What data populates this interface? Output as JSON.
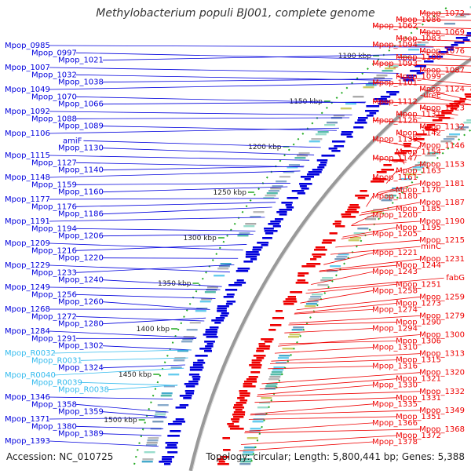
{
  "title": "Methylobacterium populi BJ001, complete genome",
  "accession_text": "Accession: NC_010725",
  "topology_text": "Topology: circular; Length: 5,800,441 bp; Genes: 5,388",
  "colors": {
    "forward": "#ee0000",
    "reverse": "#0000dd",
    "rna": "#33bbee",
    "axis": "#999999",
    "tick": "#22aa22",
    "label_dark": "#000000"
  },
  "kbp_ticks": [
    "1100 kbp",
    "1150 kbp",
    "1200 kbp",
    "1250 kbp",
    "1300 kbp",
    "1350 kbp",
    "1400 kbp",
    "1450 kbp",
    "1500 kbp"
  ],
  "left_labels": [
    {
      "text": "Mpop_0985",
      "kind": "reverse"
    },
    {
      "text": "Mpop_0997",
      "kind": "reverse"
    },
    {
      "text": "Mpop_1021",
      "kind": "reverse"
    },
    {
      "text": "Mpop_1007",
      "kind": "reverse"
    },
    {
      "text": "Mpop_1032",
      "kind": "reverse"
    },
    {
      "text": "Mpop_1038",
      "kind": "reverse"
    },
    {
      "text": "Mpop_1049",
      "kind": "reverse"
    },
    {
      "text": "Mpop_1070",
      "kind": "reverse"
    },
    {
      "text": "Mpop_1066",
      "kind": "reverse"
    },
    {
      "text": "Mpop_1092",
      "kind": "reverse"
    },
    {
      "text": "Mpop_1088",
      "kind": "reverse"
    },
    {
      "text": "Mpop_1089",
      "kind": "reverse"
    },
    {
      "text": "Mpop_1106",
      "kind": "reverse"
    },
    {
      "text": "amiF",
      "kind": "reverse"
    },
    {
      "text": "Mpop_1130",
      "kind": "reverse"
    },
    {
      "text": "Mpop_1115",
      "kind": "reverse"
    },
    {
      "text": "Mpop_1127",
      "kind": "reverse"
    },
    {
      "text": "Mpop_1140",
      "kind": "reverse"
    },
    {
      "text": "Mpop_1148",
      "kind": "reverse"
    },
    {
      "text": "Mpop_1159",
      "kind": "reverse"
    },
    {
      "text": "Mpop_1160",
      "kind": "reverse"
    },
    {
      "text": "Mpop_1177",
      "kind": "reverse"
    },
    {
      "text": "Mpop_1176",
      "kind": "reverse"
    },
    {
      "text": "Mpop_1186",
      "kind": "reverse"
    },
    {
      "text": "Mpop_1191",
      "kind": "reverse"
    },
    {
      "text": "Mpop_1194",
      "kind": "reverse"
    },
    {
      "text": "Mpop_1206",
      "kind": "reverse"
    },
    {
      "text": "Mpop_1209",
      "kind": "reverse"
    },
    {
      "text": "Mpop_1216",
      "kind": "reverse"
    },
    {
      "text": "Mpop_1220",
      "kind": "reverse"
    },
    {
      "text": "Mpop_1229",
      "kind": "reverse"
    },
    {
      "text": "Mpop_1233",
      "kind": "reverse"
    },
    {
      "text": "Mpop_1240",
      "kind": "reverse"
    },
    {
      "text": "Mpop_1249",
      "kind": "reverse"
    },
    {
      "text": "Mpop_1256",
      "kind": "reverse"
    },
    {
      "text": "Mpop_1260",
      "kind": "reverse"
    },
    {
      "text": "Mpop_1268",
      "kind": "reverse"
    },
    {
      "text": "Mpop_1272",
      "kind": "reverse"
    },
    {
      "text": "Mpop_1280",
      "kind": "reverse"
    },
    {
      "text": "Mpop_1284",
      "kind": "reverse"
    },
    {
      "text": "Mpop_1291",
      "kind": "reverse"
    },
    {
      "text": "Mpop_1302",
      "kind": "reverse"
    },
    {
      "text": "Mpop_R0032",
      "kind": "rna"
    },
    {
      "text": "Mpop_R0031",
      "kind": "rna"
    },
    {
      "text": "Mpop_1324",
      "kind": "reverse"
    },
    {
      "text": "Mpop_R0040",
      "kind": "rna"
    },
    {
      "text": "Mpop_R0039",
      "kind": "rna"
    },
    {
      "text": "Mpop_R0038",
      "kind": "rna"
    },
    {
      "text": "Mpop_1346",
      "kind": "reverse"
    },
    {
      "text": "Mpop_1358",
      "kind": "reverse"
    },
    {
      "text": "Mpop_1359",
      "kind": "reverse"
    },
    {
      "text": "Mpop_1371",
      "kind": "reverse"
    },
    {
      "text": "Mpop_1380",
      "kind": "reverse"
    },
    {
      "text": "Mpop_1389",
      "kind": "reverse"
    },
    {
      "text": "Mpop_1393",
      "kind": "reverse"
    }
  ],
  "right_labels": [
    {
      "text": "Mpop_1072"
    },
    {
      "text": "Mpop_1086"
    },
    {
      "text": "Mpop_1062"
    },
    {
      "text": "Mpop_1069"
    },
    {
      "text": "Mpop_1083"
    },
    {
      "text": "Mpop_1094"
    },
    {
      "text": "Mpop_1076"
    },
    {
      "text": "Mpop_1100"
    },
    {
      "text": "Mpop_1093"
    },
    {
      "text": "Mpop_1087"
    },
    {
      "text": "Mpop_1099"
    },
    {
      "text": "Mpop_1101"
    },
    {
      "text": "Mpop_1124"
    },
    {
      "text": "ureE"
    },
    {
      "text": "Mpop_1112"
    },
    {
      "text": "Mpop_1123"
    },
    {
      "text": "Mpop_1131"
    },
    {
      "text": "Mpop_1126"
    },
    {
      "text": "Mpop_1132"
    },
    {
      "text": "Mpop_1142"
    },
    {
      "text": "Mpop_1139"
    },
    {
      "text": "Mpop_1146"
    },
    {
      "text": "Mpop_1154"
    },
    {
      "text": "Mpop_1147"
    },
    {
      "text": "Mpop_1153"
    },
    {
      "text": "Mpop_1163"
    },
    {
      "text": "Mpop_1161"
    },
    {
      "text": "Mpop_1181"
    },
    {
      "text": "Mpop_1170"
    },
    {
      "text": "Mpop_1180"
    },
    {
      "text": "Mpop_1187"
    },
    {
      "text": "Mpop_1185"
    },
    {
      "text": "Mpop_1200"
    },
    {
      "text": "Mpop_1190"
    },
    {
      "text": "Mpop_1195"
    },
    {
      "text": "Mpop_1205"
    },
    {
      "text": "Mpop_1215"
    },
    {
      "text": "minC"
    },
    {
      "text": "Mpop_1221"
    },
    {
      "text": "Mpop_1231"
    },
    {
      "text": "Mpop_1244"
    },
    {
      "text": "Mpop_1243"
    },
    {
      "text": "fabG"
    },
    {
      "text": "Mpop_1251"
    },
    {
      "text": "Mpop_1258"
    },
    {
      "text": "Mpop_1259"
    },
    {
      "text": "Mpop_1273"
    },
    {
      "text": "Mpop_1274"
    },
    {
      "text": "Mpop_1279"
    },
    {
      "text": "Mpop_1290"
    },
    {
      "text": "Mpop_1294"
    },
    {
      "text": "Mpop_1300"
    },
    {
      "text": "Mpop_1306"
    },
    {
      "text": "Mpop_1310"
    },
    {
      "text": "Mpop_1313"
    },
    {
      "text": "Mpop_1315"
    },
    {
      "text": "Mpop_1316"
    },
    {
      "text": "Mpop_1320"
    },
    {
      "text": "Mpop_1321"
    },
    {
      "text": "Mpop_1330"
    },
    {
      "text": "Mpop_1332"
    },
    {
      "text": "Mpop_1331"
    },
    {
      "text": "Mpop_1335"
    },
    {
      "text": "Mpop_1349"
    },
    {
      "text": "Mpop_1351"
    },
    {
      "text": "Mpop_1366"
    },
    {
      "text": "Mpop_1368"
    },
    {
      "text": "Mpop_1372"
    },
    {
      "text": "Mpop_1378"
    }
  ]
}
